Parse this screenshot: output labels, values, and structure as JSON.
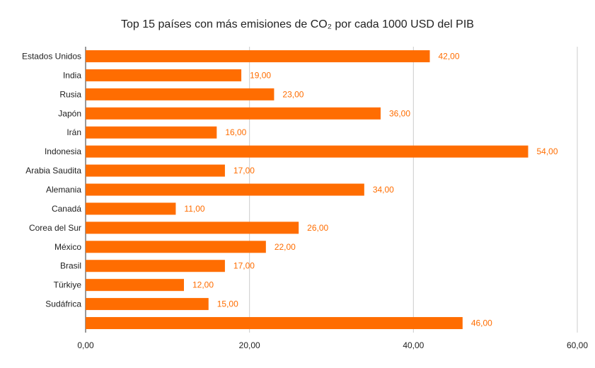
{
  "chart_data": {
    "type": "bar",
    "orientation": "horizontal",
    "title": "Top 15 países con más emisiones de CO₂ por cada 1000 USD del PIB",
    "categories": [
      "Estados Unidos",
      "India",
      "Rusia",
      "Japón",
      "Irán",
      "Indonesia",
      "Arabia Saudita",
      "Alemania",
      "Canadá",
      "Corea del Sur",
      "México",
      "Brasil",
      "Türkiye",
      "Sudáfrica",
      ""
    ],
    "values": [
      42,
      19,
      23,
      36,
      16,
      54,
      17,
      34,
      11,
      26,
      22,
      17,
      12,
      15,
      46
    ],
    "data_labels": [
      "42,00",
      "19,00",
      "23,00",
      "36,00",
      "16,00",
      "54,00",
      "17,00",
      "34,00",
      "11,00",
      "26,00",
      "22,00",
      "17,00",
      "12,00",
      "15,00",
      "46,00"
    ],
    "xlim": [
      0,
      60
    ],
    "x_ticks": [
      0,
      20,
      40,
      60
    ],
    "x_tick_labels": [
      "0,00",
      "20,00",
      "40,00",
      "60,00"
    ],
    "xlabel": "",
    "ylabel": "",
    "grid": "vertical",
    "legend": "none",
    "bar_color": "#ff6d01",
    "label_color": "#ff6d01"
  }
}
